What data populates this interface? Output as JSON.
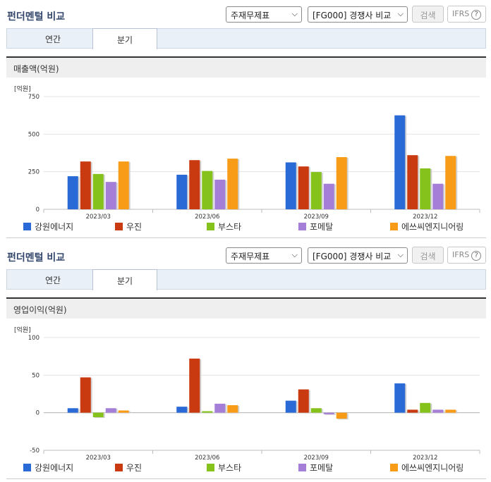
{
  "header": {
    "title": "펀더멘털 비교",
    "select_statement": "주재무제표",
    "select_peer": "[FG000] 경쟁사 비교",
    "search_button": "검색",
    "ifrs_label": "IFRS",
    "help_icon": "?"
  },
  "tabs": [
    {
      "label": "연간",
      "active": false
    },
    {
      "label": "분기",
      "active": true
    }
  ],
  "legend": [
    {
      "label": "강원에너지",
      "color": "#2a6ad6"
    },
    {
      "label": "우진",
      "color": "#c93a10"
    },
    {
      "label": "부스타",
      "color": "#86c21c"
    },
    {
      "label": "포메탈",
      "color": "#a57ed8"
    },
    {
      "label": "에쓰씨엔지니어링",
      "color": "#f89b16"
    }
  ],
  "chart_data": [
    {
      "type": "bar",
      "title": "매출액(억원)",
      "unit_label": "[억원]",
      "categories": [
        "2023/03",
        "2023/06",
        "2023/09",
        "2023/12"
      ],
      "ylim": [
        0,
        750
      ],
      "yticks": [
        "750",
        "500",
        "250",
        "0"
      ],
      "tick_values": [
        750,
        500,
        250,
        0
      ],
      "series": [
        {
          "name": "강원에너지",
          "color": "#2a6ad6",
          "values": [
            220,
            230,
            312,
            625
          ]
        },
        {
          "name": "우진",
          "color": "#c93a10",
          "values": [
            318,
            327,
            285,
            360
          ]
        },
        {
          "name": "부스타",
          "color": "#86c21c",
          "values": [
            235,
            255,
            248,
            272
          ]
        },
        {
          "name": "포메탈",
          "color": "#a57ed8",
          "values": [
            182,
            197,
            170,
            170
          ]
        },
        {
          "name": "에쓰씨엔지니어링",
          "color": "#f89b16",
          "values": [
            318,
            337,
            347,
            355
          ]
        }
      ],
      "grid": true,
      "legend_position": "bottom"
    },
    {
      "type": "bar",
      "title": "영업이익(억원)",
      "unit_label": "[억원]",
      "categories": [
        "2023/03",
        "2023/06",
        "2023/09",
        "2023/12"
      ],
      "ylim": [
        -50,
        100
      ],
      "yticks": [
        "100",
        "50",
        "0",
        "-50"
      ],
      "tick_values": [
        100,
        50,
        0,
        -50
      ],
      "series": [
        {
          "name": "강원에너지",
          "color": "#2a6ad6",
          "values": [
            6,
            8,
            16,
            39
          ]
        },
        {
          "name": "우진",
          "color": "#c93a10",
          "values": [
            47,
            72,
            31,
            4
          ]
        },
        {
          "name": "부스타",
          "color": "#86c21c",
          "values": [
            -6,
            2,
            6,
            13
          ]
        },
        {
          "name": "포메탈",
          "color": "#a57ed8",
          "values": [
            6,
            12,
            -2,
            4
          ]
        },
        {
          "name": "에쓰씨엔지니어링",
          "color": "#f89b16",
          "values": [
            3,
            10,
            -8,
            4
          ]
        }
      ],
      "grid": true,
      "legend_position": "bottom"
    }
  ]
}
